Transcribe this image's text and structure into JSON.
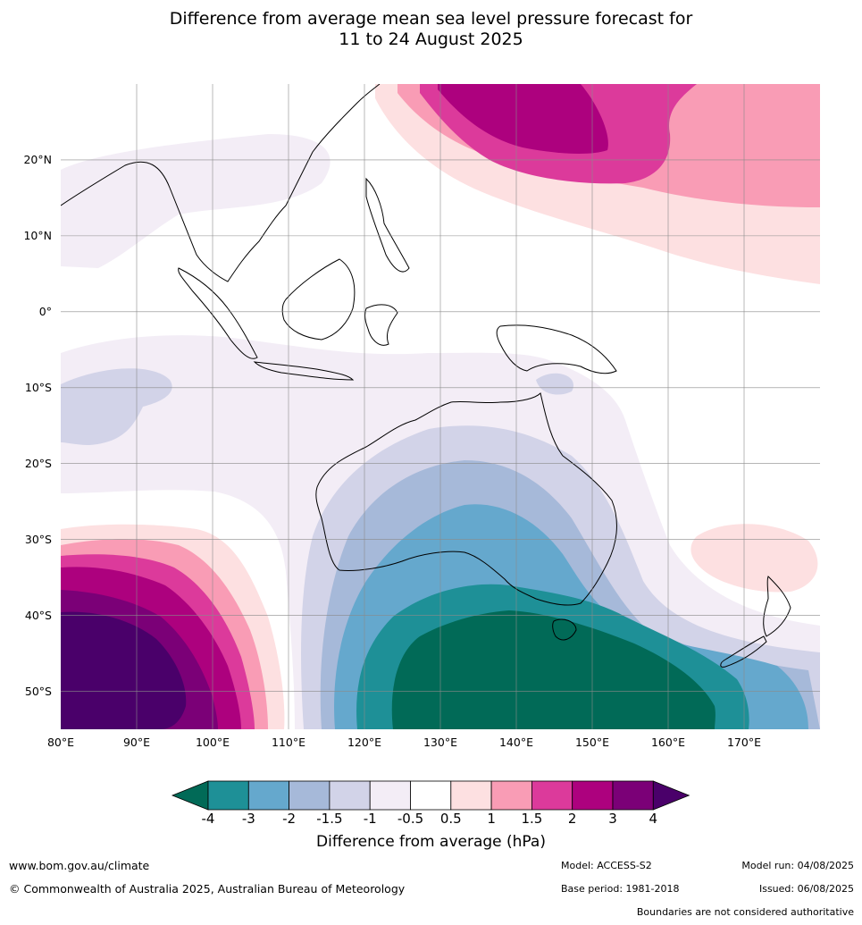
{
  "title_line1": "Difference from average mean sea level pressure forecast for",
  "title_line2": "11 to 24 August 2025",
  "map": {
    "lon_range": [
      80,
      180
    ],
    "lat_range": [
      -55,
      30
    ],
    "lat_labels": [
      "20°N",
      "10°N",
      "0°",
      "10°S",
      "20°S",
      "30°S",
      "40°S",
      "50°S"
    ],
    "lat_values": [
      20,
      10,
      0,
      -10,
      -20,
      -30,
      -40,
      -50
    ],
    "lon_labels": [
      "80°E",
      "90°E",
      "100°E",
      "110°E",
      "120°E",
      "130°E",
      "140°E",
      "150°E",
      "160°E",
      "170°E"
    ],
    "lon_values": [
      80,
      90,
      100,
      110,
      120,
      130,
      140,
      150,
      160,
      170
    ]
  },
  "colorbar": {
    "ticks": [
      "-4",
      "-3",
      "-2",
      "-1.5",
      "-1",
      "-0.5",
      "0.5",
      "1",
      "1.5",
      "2",
      "3",
      "4"
    ],
    "colors": [
      "#016a57",
      "#1e9097",
      "#65a8cd",
      "#a6b9d9",
      "#d2d3e8",
      "#f3edf6",
      "#ffffff",
      "#fde0e1",
      "#f99cb5",
      "#dc3a9b",
      "#ad017e",
      "#7b0077",
      "#4a006a"
    ],
    "label": "Difference from average (hPa)"
  },
  "footer": {
    "website": "www.bom.gov.au/climate",
    "copyright": "© Commonwealth of Australia 2025, Australian Bureau of Meteorology",
    "model": "Model: ACCESS-S2",
    "base_period": "Base period: 1981-2018",
    "model_run": "Model run: 04/08/2025",
    "issued": "Issued: 06/08/2025",
    "disclaimer": "Boundaries are not considered authoritative"
  }
}
